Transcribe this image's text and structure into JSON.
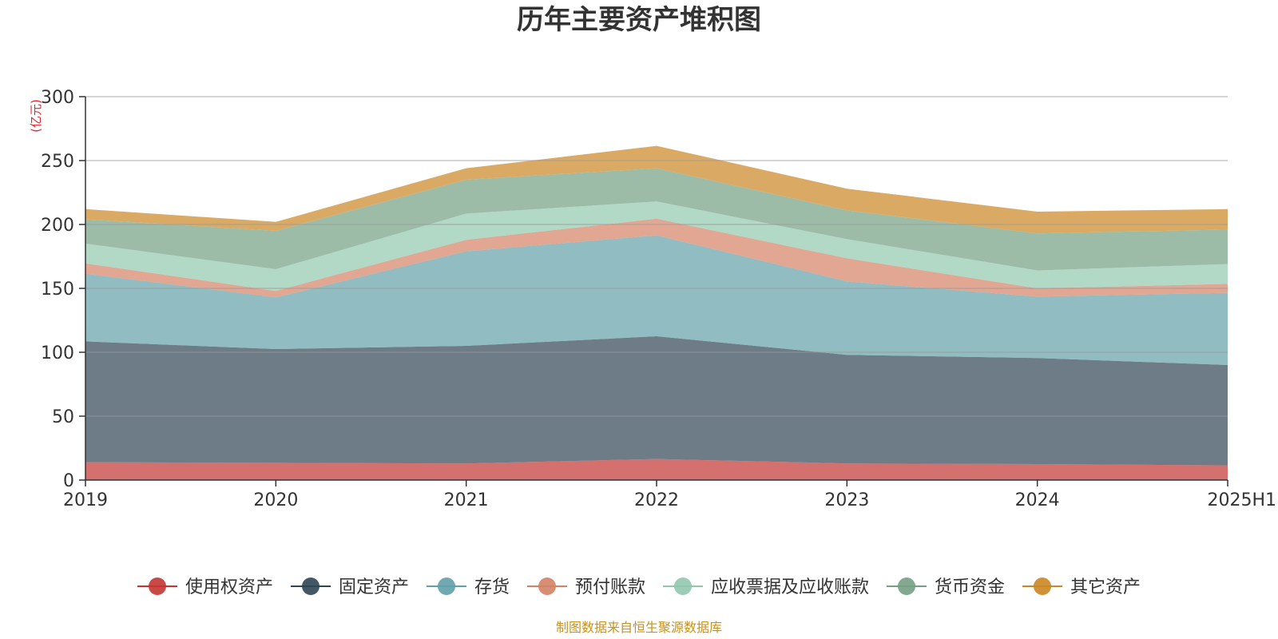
{
  "chart_data": {
    "type": "area",
    "stacked": true,
    "title": "历年主要资产堆积图",
    "unit_label": "(亿元)",
    "unit_color": "#e8242a",
    "categories": [
      "2019",
      "2020",
      "2021",
      "2022",
      "2023",
      "2024",
      "2025H1"
    ],
    "ylim": [
      0,
      300
    ],
    "yticks": [
      0,
      50,
      100,
      150,
      200,
      250,
      300
    ],
    "grid": true,
    "legend_position": "bottom",
    "series": [
      {
        "name": "使用权资产",
        "color": "#c23531",
        "values": [
          14,
          13.5,
          13,
          16.5,
          13,
          12.5,
          11.5
        ]
      },
      {
        "name": "固定资产",
        "color": "#2f4554",
        "values": [
          94.5,
          89,
          92,
          96,
          85,
          83,
          78.5
        ]
      },
      {
        "name": "存货",
        "color": "#61a0a8",
        "values": [
          53,
          40.5,
          74,
          79,
          57.5,
          48,
          56.5
        ]
      },
      {
        "name": "预付账款",
        "color": "#d48265",
        "values": [
          8,
          5,
          9,
          13,
          18,
          6.5,
          7
        ]
      },
      {
        "name": "应收票据及应收账款",
        "color": "#91c7ae",
        "values": [
          15.5,
          17,
          20.5,
          13.5,
          15,
          14,
          15.5
        ]
      },
      {
        "name": "货币资金",
        "color": "#749f83",
        "values": [
          19,
          30,
          26.5,
          26,
          22.5,
          29,
          27
        ]
      },
      {
        "name": "其它资产",
        "color": "#ca8622",
        "values": [
          8,
          7,
          9,
          17.5,
          17,
          17,
          16
        ]
      }
    ]
  },
  "source_note": "制图数据来自恒生聚源数据库",
  "source_color": "#c8921c"
}
